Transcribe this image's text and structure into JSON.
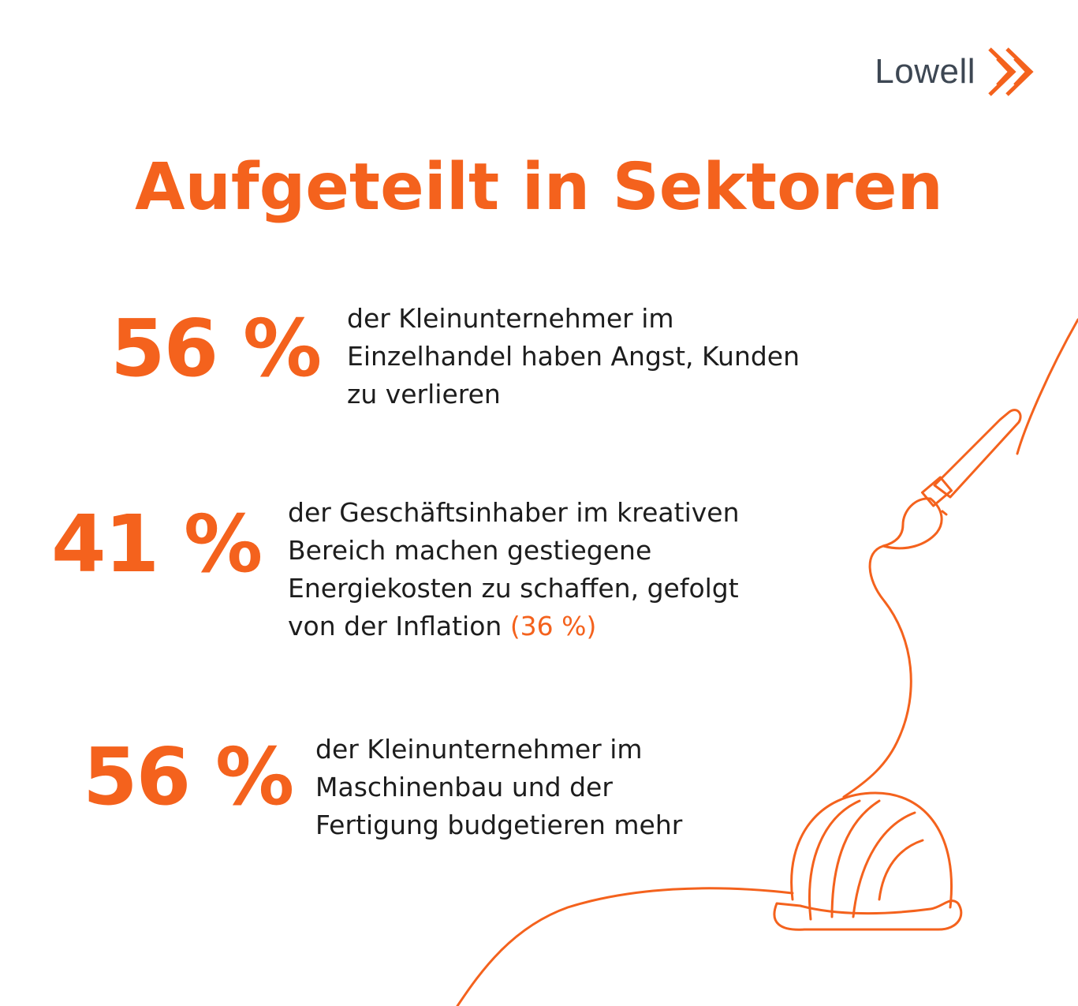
{
  "brand": {
    "name": "Lowell",
    "icon": "double-chevron-right-icon",
    "color": "#f4621d"
  },
  "title": "Aufgeteilt in Sektoren",
  "stats": [
    {
      "value": "56 %",
      "lines": [
        "der Kleinunternehmer im",
        "Einzelhandel haben Angst, Kunden",
        "zu verlieren"
      ]
    },
    {
      "value": "41 %",
      "lines": [
        "der Geschäftsinhaber im kreativen",
        "Bereich machen gestiegene",
        "Energiekosten zu schaffen, gefolgt",
        "von der Inflation"
      ],
      "highlight": "(36 %)"
    },
    {
      "value": "56 %",
      "lines": [
        "der Kleinunternehmer im",
        "Maschinenbau und der",
        "Fertigung budgetieren mehr"
      ]
    }
  ],
  "illustration": {
    "icons": [
      "paintbrush-icon",
      "hard-hat-icon"
    ],
    "color": "#f4621d"
  }
}
